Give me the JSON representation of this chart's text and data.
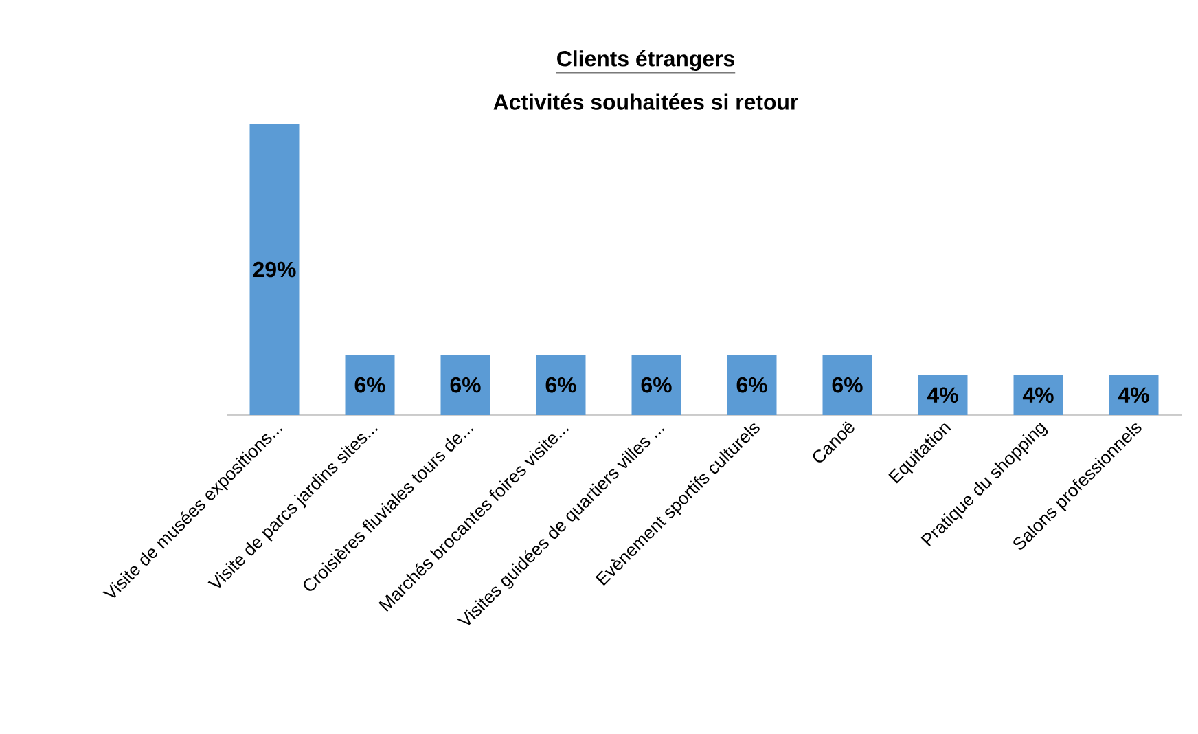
{
  "chart_data": {
    "type": "bar",
    "title": "Clients étrangers",
    "subtitle": "Activités souhaitées si retour",
    "categories": [
      "Visite de musées expositions...",
      "Visite de parcs jardins sites...",
      "Croisières fluviales tours de...",
      "Marchés brocantes foires visite...",
      "Visites guidées de quartiers villes ...",
      "Evènement sportifs culturels",
      "Canoë",
      "Equitation",
      "Pratique du shopping",
      "Salons professionnels"
    ],
    "values": [
      29,
      6,
      6,
      6,
      6,
      6,
      6,
      4,
      4,
      4
    ],
    "value_labels": [
      "29%",
      "6%",
      "6%",
      "6%",
      "6%",
      "6%",
      "6%",
      "4%",
      "4%",
      "4%"
    ],
    "color": "#5b9bd5"
  }
}
